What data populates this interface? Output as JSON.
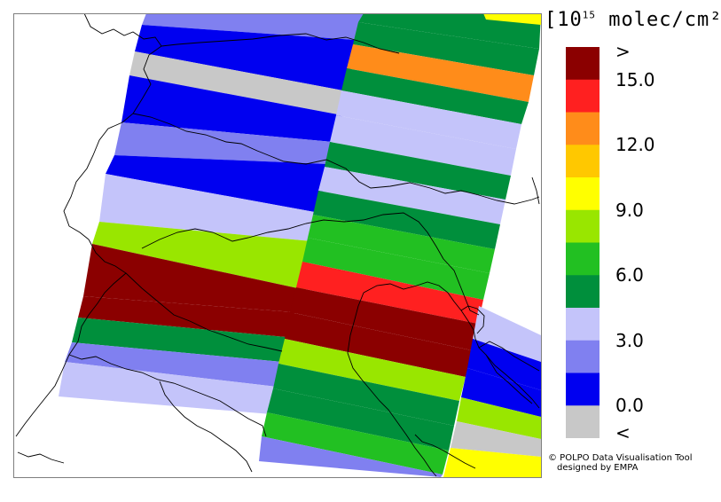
{
  "legend": {
    "title_prefix": "[10",
    "title_exponent": "15",
    "title_suffix": " molec/cm²]",
    "ticks": [
      ">",
      "15.0",
      "12.0",
      "9.0",
      "6.0",
      "3.0",
      "0.0",
      "<"
    ],
    "bins": [
      {
        "label": "above max",
        "color": "#8b0000"
      },
      {
        "label": "13.5-15.0",
        "color": "#ff2020"
      },
      {
        "label": "12.0-13.5",
        "color": "#ff8c1a"
      },
      {
        "label": "10.5-12.0",
        "color": "#ffc800"
      },
      {
        "label": "9.0-10.5",
        "color": "#ffff00"
      },
      {
        "label": "7.5-9.0",
        "color": "#99e600"
      },
      {
        "label": "6.0-7.5",
        "color": "#22c022"
      },
      {
        "label": "4.5-6.0",
        "color": "#008f3c"
      },
      {
        "label": "3.0-4.5",
        "color": "#c4c4fa"
      },
      {
        "label": "1.5-3.0",
        "color": "#8080f0"
      },
      {
        "label": "0.0-1.5",
        "color": "#0000f0"
      },
      {
        "label": "below min",
        "color": "#c8c8c8"
      }
    ]
  },
  "credit": {
    "line1": "© POLPO Data Visualisation Tool",
    "line2": "designed by EMPA"
  },
  "colors": {
    "dark_red": "#8b0000",
    "red": "#ff2020",
    "orange": "#ff8c1a",
    "yellow": "#ffff00",
    "light_green": "#99e600",
    "bright_green": "#22c022",
    "dark_green": "#008f3c",
    "pale_blue": "#c4c4fa",
    "medium_blue": "#8080f0",
    "blue": "#0000f0",
    "grey": "#c8c8c8",
    "border_line": "#000000"
  }
}
